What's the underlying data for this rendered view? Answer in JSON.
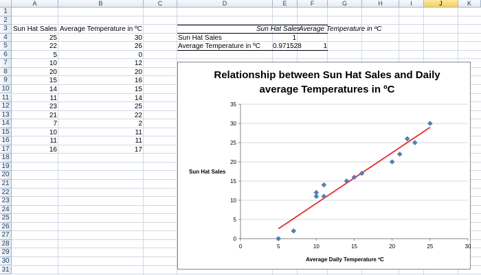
{
  "columns": [
    "A",
    "B",
    "C",
    "D",
    "E",
    "F",
    "G",
    "H",
    "I",
    "J",
    "K"
  ],
  "active_column": "J",
  "rows": [
    "1",
    "2",
    "3",
    "4",
    "5",
    "6",
    "7",
    "8",
    "9",
    "10",
    "11",
    "12",
    "13",
    "14",
    "15",
    "16",
    "17",
    "18",
    "19",
    "20",
    "21",
    "22",
    "23",
    "24",
    "25",
    "26",
    "27",
    "28",
    "29",
    "30",
    "31"
  ],
  "data_table": {
    "header_a": "Sun Hat Sales",
    "header_b": "Average Temperature in ºC",
    "sales": [
      "25",
      "22",
      "5",
      "10",
      "20",
      "15",
      "14",
      "11",
      "23",
      "21",
      "7",
      "10",
      "11",
      "16"
    ],
    "temps": [
      "30",
      "26",
      "0",
      "12",
      "20",
      "16",
      "15",
      "14",
      "25",
      "22",
      "2",
      "11",
      "11",
      "17"
    ]
  },
  "correlation": {
    "header_e": "Sun Hat Sales",
    "header_f": "Average Temperature in ºC",
    "row1_label": "Sun Hat Sales",
    "row1_e": "1",
    "row2_label": "Average Temperature in ºC",
    "row2_e": "0.971528",
    "row2_f": "1"
  },
  "chart_data": {
    "type": "scatter",
    "title_line1": "Relationship between Sun Hat Sales and Daily",
    "title_line2": "average Temperatures in ºC",
    "xlabel": "Average Daily Temperature ºC",
    "ylabel": "Sun Hat Sales",
    "xlim": [
      0,
      30
    ],
    "ylim": [
      0,
      35
    ],
    "x_ticks": [
      "0",
      "5",
      "10",
      "15",
      "20",
      "25",
      "30"
    ],
    "y_ticks": [
      "0",
      "5",
      "10",
      "15",
      "20",
      "25",
      "30",
      "35"
    ],
    "points": [
      {
        "x": 25,
        "y": 30
      },
      {
        "x": 22,
        "y": 26
      },
      {
        "x": 5,
        "y": 0
      },
      {
        "x": 10,
        "y": 12
      },
      {
        "x": 20,
        "y": 20
      },
      {
        "x": 15,
        "y": 16
      },
      {
        "x": 14,
        "y": 15
      },
      {
        "x": 11,
        "y": 14
      },
      {
        "x": 23,
        "y": 25
      },
      {
        "x": 21,
        "y": 22
      },
      {
        "x": 7,
        "y": 2
      },
      {
        "x": 10,
        "y": 11
      },
      {
        "x": 11,
        "y": 11
      },
      {
        "x": 16,
        "y": 17
      }
    ],
    "trendline": {
      "x1": 5,
      "y1": 2.6,
      "x2": 25,
      "y2": 29
    },
    "marker_color": "#4f81bd",
    "trend_color": "#ff0000",
    "grid": true,
    "legend": "none"
  }
}
